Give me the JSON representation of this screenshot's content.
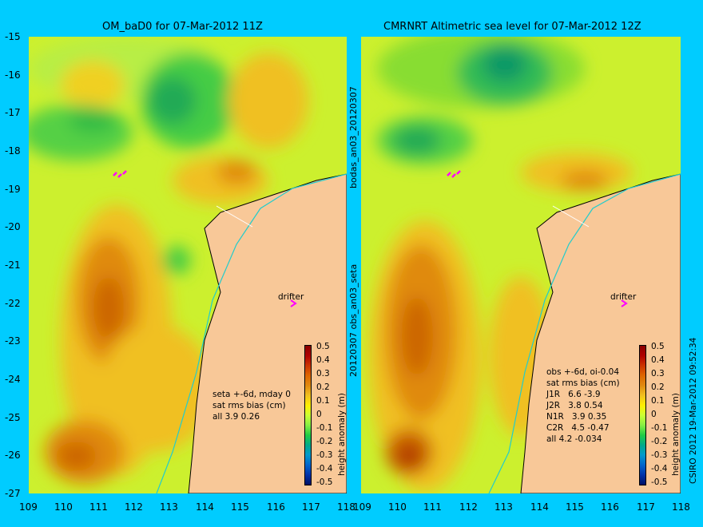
{
  "left_panel": {
    "title": "OM_baD0 for 07-Mar-2012 11Z",
    "stats": [
      "seta +-6d, mday 0",
      "sat rms bias (cm)",
      "all 3.9 0.26"
    ],
    "drifter_label": "drifter"
  },
  "right_panel": {
    "title": "CMRNRT Altimetric sea level  for 07-Mar-2012 12Z",
    "stats": [
      "obs +-6d, oi-0.04",
      "sat rms bias (cm)",
      "J1R   6.6 -3.9",
      "J2R   3.8 0.54",
      "N1R   3.9 0.35",
      "C2R   4.5 -0.47",
      "all 4.2 -0.034"
    ],
    "drifter_label": "drifter"
  },
  "axes": {
    "y_ticks": [
      "-15",
      "-16",
      "-17",
      "-18",
      "-19",
      "-20",
      "-21",
      "-22",
      "-23",
      "-24",
      "-25",
      "-26",
      "-27"
    ],
    "x_ticks": [
      "109",
      "110",
      "111",
      "112",
      "113",
      "114",
      "115",
      "116",
      "117",
      "118"
    ]
  },
  "middle_text": {
    "upper": "bodas_an03_20120307",
    "lower": "20120307 obs_an03_seta"
  },
  "colorbar": {
    "ticks": [
      "0.5",
      "0.4",
      "0.3",
      "0.2",
      "0.1",
      "0",
      "-0.1",
      "-0.2",
      "-0.3",
      "-0.4",
      "-0.5"
    ],
    "title": "height anomaly (m)",
    "colors": [
      "#8a0000",
      "#b00000",
      "#cc3300",
      "#dd6600",
      "#e08a10",
      "#f0c020",
      "#ffee00",
      "#ccff33",
      "#88ee44",
      "#22cc44",
      "#00aa88",
      "#0099cc",
      "#0066cc",
      "#0033aa",
      "#001166"
    ]
  },
  "credit": "CSIRO 2012   19-Mar-2012 09:52:34"
}
